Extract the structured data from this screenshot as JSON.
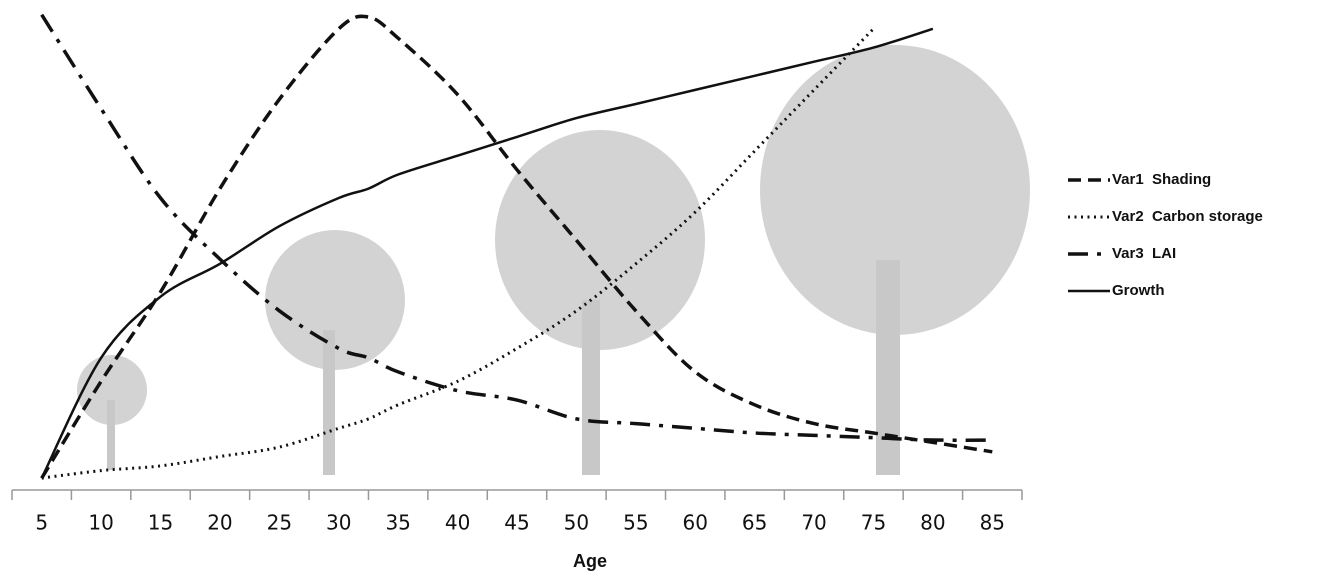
{
  "chart_data": {
    "type": "line",
    "x_label": "Age",
    "x": [
      5,
      10,
      15,
      20,
      25,
      30,
      32.5,
      35,
      40,
      45,
      50,
      55,
      60,
      65,
      70,
      75,
      80,
      85
    ],
    "xlim": [
      2.5,
      87.5
    ],
    "xticks": [
      5,
      10,
      15,
      20,
      25,
      30,
      35,
      40,
      45,
      50,
      55,
      60,
      65,
      70,
      75,
      80,
      85
    ],
    "xminorticks": [
      2.5,
      7.5,
      12.5,
      17.5,
      22.5,
      27.5,
      32.5,
      37.5,
      42.5,
      47.5,
      52.5,
      57.5,
      62.5,
      67.5,
      72.5,
      77.5,
      82.5,
      87.5
    ],
    "ylim": [
      0,
      100
    ],
    "series": [
      {
        "name": "Var1",
        "label": "Shading",
        "style": "dashed",
        "color": "#111111",
        "values": [
          0.4,
          21,
          40,
          62,
          81,
          96,
          98.5,
          94,
          82,
          66,
          51,
          36,
          23,
          16,
          12,
          10,
          8,
          6
        ]
      },
      {
        "name": "Var2",
        "label": "Carbon storage",
        "style": "dotted",
        "color": "#111111",
        "values": [
          0.4,
          2,
          3,
          5,
          7,
          11,
          13,
          16,
          21,
          28,
          36,
          46,
          57,
          70,
          83,
          96,
          null,
          null
        ]
      },
      {
        "name": "Var3",
        "label": "LAI",
        "style": "dashdot",
        "color": "#111111",
        "values": [
          99,
          79,
          60,
          47,
          36,
          28,
          26,
          23,
          19,
          17,
          13,
          12,
          11,
          10,
          9.5,
          9,
          8.5,
          8.5
        ]
      },
      {
        "name": "Growth",
        "style": "solid",
        "color": "#111111",
        "values": [
          0.4,
          26,
          39,
          46,
          54,
          60,
          62,
          65,
          69,
          73,
          77,
          80,
          83,
          86,
          89,
          92,
          96,
          null
        ]
      }
    ]
  }
}
